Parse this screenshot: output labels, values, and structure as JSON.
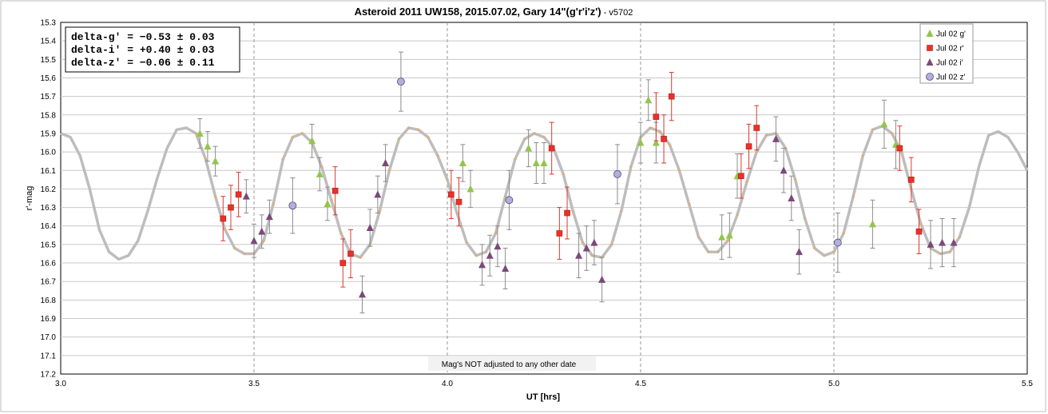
{
  "chart_data": {
    "type": "scatter",
    "title": "Asteroid  2011  UW158,  2015.07.02,  Gary  14\"(g'r'i'z')",
    "title_suffix": " - v5702",
    "xlabel": "UT [hrs]",
    "ylabel": "r'-mag",
    "xlim": [
      3.0,
      5.5
    ],
    "ylim": [
      15.3,
      17.2
    ],
    "y_inverted": true,
    "x_ticks": [
      "3.0",
      "3.5",
      "4.0",
      "4.5",
      "5.0",
      "5.5"
    ],
    "y_ticks": [
      "15.3",
      "15.4",
      "15.5",
      "15.6",
      "15.7",
      "15.8",
      "15.9",
      "16.0",
      "16.1",
      "16.2",
      "16.3",
      "16.4",
      "16.5",
      "16.6",
      "16.7",
      "16.8",
      "16.9",
      "17.0",
      "17.1",
      "17.2"
    ],
    "grid": true,
    "legend_position": "top-right",
    "deltas": [
      "delta-g' = −0.53 ± 0.03",
      "delta-i' = +0.40 ± 0.03",
      "delta-z' = −0.06 ± 0.11"
    ],
    "annotation": "Mag's NOT adjusted to any other date",
    "model": {
      "color": "#bdbdbd",
      "marker_color": "#f2a65a",
      "x": [
        3.0,
        3.025,
        3.05,
        3.075,
        3.1,
        3.125,
        3.15,
        3.175,
        3.2,
        3.225,
        3.25,
        3.275,
        3.3,
        3.325,
        3.35,
        3.375,
        3.4,
        3.425,
        3.45,
        3.475,
        3.5,
        3.525,
        3.55,
        3.575,
        3.6,
        3.625,
        3.65,
        3.675,
        3.7,
        3.725,
        3.75,
        3.775,
        3.8,
        3.825,
        3.85,
        3.875,
        3.9,
        3.925,
        3.95,
        3.975,
        4.0,
        4.025,
        4.05,
        4.075,
        4.1,
        4.125,
        4.15,
        4.175,
        4.2,
        4.225,
        4.25,
        4.275,
        4.3,
        4.325,
        4.35,
        4.375,
        4.4,
        4.425,
        4.45,
        4.475,
        4.5,
        4.525,
        4.55,
        4.575,
        4.6,
        4.625,
        4.65,
        4.675,
        4.7,
        4.725,
        4.75,
        4.775,
        4.8,
        4.825,
        4.85,
        4.875,
        4.9,
        4.925,
        4.95,
        4.975,
        5.0,
        5.025,
        5.05,
        5.075,
        5.1,
        5.125,
        5.15,
        5.175,
        5.2,
        5.225,
        5.25,
        5.275,
        5.3,
        5.325,
        5.35,
        5.375,
        5.4,
        5.425,
        5.45,
        5.475,
        5.5
      ],
      "y": [
        15.9,
        15.92,
        16.02,
        16.2,
        16.42,
        16.54,
        16.58,
        16.56,
        16.48,
        16.32,
        16.14,
        15.98,
        15.88,
        15.87,
        15.9,
        16.04,
        16.24,
        16.42,
        16.52,
        16.55,
        16.55,
        16.48,
        16.28,
        16.04,
        15.92,
        15.9,
        15.95,
        16.08,
        16.26,
        16.44,
        16.55,
        16.57,
        16.5,
        16.32,
        16.1,
        15.93,
        15.87,
        15.88,
        15.92,
        16.02,
        16.15,
        16.33,
        16.49,
        16.56,
        16.54,
        16.44,
        16.24,
        16.04,
        15.93,
        15.9,
        15.92,
        15.98,
        16.12,
        16.32,
        16.49,
        16.56,
        16.57,
        16.5,
        16.32,
        16.08,
        15.92,
        15.87,
        15.89,
        15.96,
        16.1,
        16.28,
        16.46,
        16.54,
        16.54,
        16.48,
        16.34,
        16.16,
        16.0,
        15.91,
        15.9,
        15.98,
        16.15,
        16.36,
        16.52,
        16.56,
        16.54,
        16.44,
        16.24,
        16.02,
        15.88,
        15.86,
        15.9,
        16.0,
        16.2,
        16.39,
        16.52,
        16.55,
        16.54,
        16.46,
        16.3,
        16.08,
        15.91,
        15.89,
        15.92,
        16.0,
        16.1
      ]
    },
    "series": [
      {
        "name": "Jul 02 g'",
        "marker": "triangle",
        "color": "#92c64b",
        "x": [
          3.36,
          3.38,
          3.4,
          3.65,
          3.67,
          3.69,
          4.04,
          4.06,
          4.21,
          4.23,
          4.25,
          4.5,
          4.52,
          4.54,
          4.71,
          4.73,
          4.75,
          5.1,
          5.13,
          5.16
        ],
        "y": [
          15.9,
          15.97,
          16.05,
          15.94,
          16.12,
          16.28,
          16.06,
          16.2,
          15.98,
          16.06,
          16.06,
          15.95,
          15.72,
          15.95,
          16.46,
          16.45,
          16.13,
          16.39,
          15.85,
          15.96
        ],
        "err": [
          0.08,
          0.08,
          0.08,
          0.09,
          0.09,
          0.09,
          0.1,
          0.1,
          0.1,
          0.11,
          0.11,
          0.11,
          0.11,
          0.11,
          0.12,
          0.12,
          0.12,
          0.13,
          0.13,
          0.13
        ]
      },
      {
        "name": "Jul 02 r'",
        "marker": "square",
        "color": "#e8322a",
        "x": [
          3.42,
          3.44,
          3.46,
          3.71,
          3.73,
          3.75,
          4.01,
          4.03,
          4.27,
          4.29,
          4.31,
          4.54,
          4.56,
          4.58,
          4.76,
          4.78,
          4.8,
          5.17,
          5.2,
          5.22
        ],
        "y": [
          16.36,
          16.3,
          16.23,
          16.21,
          16.6,
          16.55,
          16.23,
          16.27,
          15.98,
          16.44,
          16.33,
          15.81,
          15.93,
          15.7,
          16.13,
          15.97,
          15.87,
          15.98,
          16.15,
          16.43
        ],
        "err": [
          0.12,
          0.12,
          0.12,
          0.13,
          0.13,
          0.13,
          0.13,
          0.13,
          0.14,
          0.14,
          0.14,
          0.13,
          0.13,
          0.13,
          0.12,
          0.12,
          0.12,
          0.12,
          0.12,
          0.12
        ]
      },
      {
        "name": "Jul 02 i'",
        "marker": "triangle",
        "color": "#7a4a78",
        "x": [
          3.48,
          3.5,
          3.52,
          3.54,
          3.78,
          3.8,
          3.82,
          3.84,
          4.09,
          4.11,
          4.13,
          4.15,
          4.34,
          4.36,
          4.38,
          4.4,
          4.85,
          4.87,
          4.89,
          4.91,
          5.25,
          5.28,
          5.31
        ],
        "y": [
          16.24,
          16.48,
          16.43,
          16.35,
          16.77,
          16.41,
          16.23,
          16.06,
          16.61,
          16.56,
          16.51,
          16.63,
          16.56,
          16.52,
          16.49,
          16.69,
          15.93,
          16.1,
          16.25,
          16.54,
          16.5,
          16.49,
          16.49
        ],
        "err": [
          0.09,
          0.09,
          0.09,
          0.09,
          0.1,
          0.1,
          0.1,
          0.1,
          0.11,
          0.11,
          0.11,
          0.11,
          0.12,
          0.12,
          0.12,
          0.12,
          0.12,
          0.12,
          0.12,
          0.12,
          0.13,
          0.13,
          0.13
        ]
      },
      {
        "name": "Jul 02 z'",
        "marker": "circle",
        "color": "#b4afd6",
        "x": [
          3.6,
          3.88,
          4.16,
          4.44,
          5.01
        ],
        "y": [
          16.29,
          15.62,
          16.26,
          16.12,
          16.49
        ],
        "err": [
          0.15,
          0.16,
          0.16,
          0.16,
          0.16
        ]
      }
    ]
  }
}
